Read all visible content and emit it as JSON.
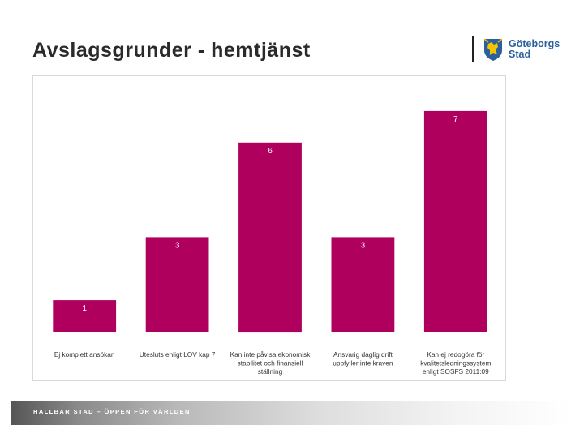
{
  "header": {
    "title": "Avslagsgrunder - hemtjänst",
    "logo": {
      "line1": "Göteborgs",
      "line2": "Stad",
      "emblem_icon": "goteborg-lion-emblem",
      "text_color": "#2b5f9e",
      "emblem_colors": [
        "#2b5f9e",
        "#f2c500"
      ]
    }
  },
  "footer": {
    "text": "HALLBAR STAD – ÖPPEN FÖR VÄRLDEN"
  },
  "chart_data": {
    "type": "bar",
    "title": "",
    "xlabel": "",
    "ylabel": "",
    "categories": [
      [
        "Ej komplett ansökan"
      ],
      [
        "Utesluts enligt LOV kap 7"
      ],
      [
        "Kan inte påvisa ekonomisk",
        "stabilitet och finansiell",
        "ställning"
      ],
      [
        "Ansvarig daglig drift",
        "uppfyller inte kraven"
      ],
      [
        "Kan ej redogöra för",
        "kvalitetsledningssystem",
        "enligt SOSFS 2011:09"
      ]
    ],
    "values": [
      1,
      3,
      6,
      3,
      7
    ],
    "data_labels": [
      "1",
      "3",
      "6",
      "3",
      "7"
    ],
    "ylim": [
      0,
      8
    ],
    "grid": false,
    "legend": "none",
    "bar_color": "#b0005d"
  }
}
